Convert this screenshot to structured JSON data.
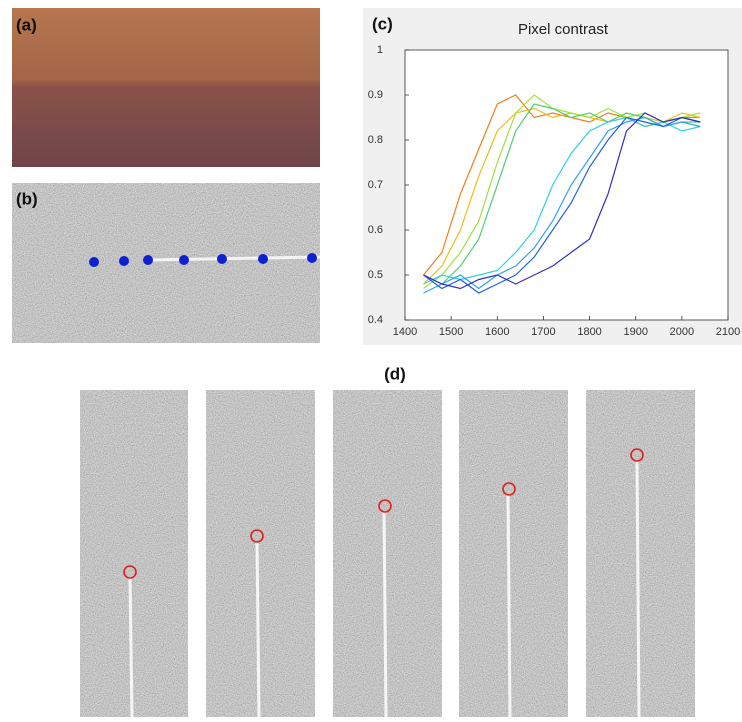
{
  "figure": {
    "labels": [
      "(a)",
      "(b)",
      "(c)",
      "(d)"
    ]
  },
  "chart_data": {
    "type": "line",
    "title": "Pixel contrast",
    "x": [
      1440,
      1480,
      1520,
      1560,
      1600,
      1640,
      1680,
      1720,
      1760,
      1800,
      1840,
      1880,
      1920,
      1960,
      2000,
      2040
    ],
    "series": [
      {
        "color": "#f07f1f",
        "values": [
          0.5,
          0.55,
          0.68,
          0.78,
          0.88,
          0.9,
          0.85,
          0.86,
          0.85,
          0.84,
          0.86,
          0.85,
          0.83,
          0.84,
          0.85,
          0.85
        ]
      },
      {
        "color": "#e8c020",
        "values": [
          0.48,
          0.52,
          0.6,
          0.72,
          0.82,
          0.86,
          0.87,
          0.85,
          0.86,
          0.85,
          0.84,
          0.86,
          0.85,
          0.84,
          0.86,
          0.85
        ]
      },
      {
        "color": "#a0e040",
        "values": [
          0.47,
          0.5,
          0.55,
          0.62,
          0.75,
          0.86,
          0.9,
          0.87,
          0.86,
          0.85,
          0.87,
          0.85,
          0.86,
          0.84,
          0.85,
          0.86
        ]
      },
      {
        "color": "#50d070",
        "values": [
          0.5,
          0.48,
          0.52,
          0.58,
          0.7,
          0.82,
          0.88,
          0.87,
          0.85,
          0.86,
          0.84,
          0.86,
          0.85,
          0.83,
          0.84,
          0.84
        ]
      },
      {
        "color": "#30d0e0",
        "values": [
          0.48,
          0.5,
          0.49,
          0.5,
          0.51,
          0.55,
          0.6,
          0.7,
          0.77,
          0.82,
          0.84,
          0.85,
          0.83,
          0.84,
          0.82,
          0.83
        ]
      },
      {
        "color": "#30a0f0",
        "values": [
          0.46,
          0.48,
          0.5,
          0.47,
          0.5,
          0.52,
          0.56,
          0.62,
          0.7,
          0.76,
          0.82,
          0.84,
          0.85,
          0.83,
          0.84,
          0.83
        ]
      },
      {
        "color": "#2060e0",
        "values": [
          0.5,
          0.47,
          0.49,
          0.46,
          0.48,
          0.5,
          0.54,
          0.6,
          0.66,
          0.74,
          0.8,
          0.85,
          0.84,
          0.83,
          0.85,
          0.84
        ]
      },
      {
        "color": "#3030c0",
        "values": [
          0.5,
          0.48,
          0.47,
          0.49,
          0.5,
          0.48,
          0.5,
          0.52,
          0.55,
          0.58,
          0.68,
          0.82,
          0.86,
          0.84,
          0.85,
          0.84
        ]
      }
    ],
    "xlim": [
      1400,
      2100
    ],
    "xticks": [
      1400,
      1500,
      1600,
      1700,
      1800,
      1900,
      2000,
      2100
    ],
    "ylim": [
      0.4,
      1
    ],
    "yticks": [
      0.4,
      0.5,
      0.6,
      0.7,
      0.8,
      0.9,
      1
    ]
  }
}
